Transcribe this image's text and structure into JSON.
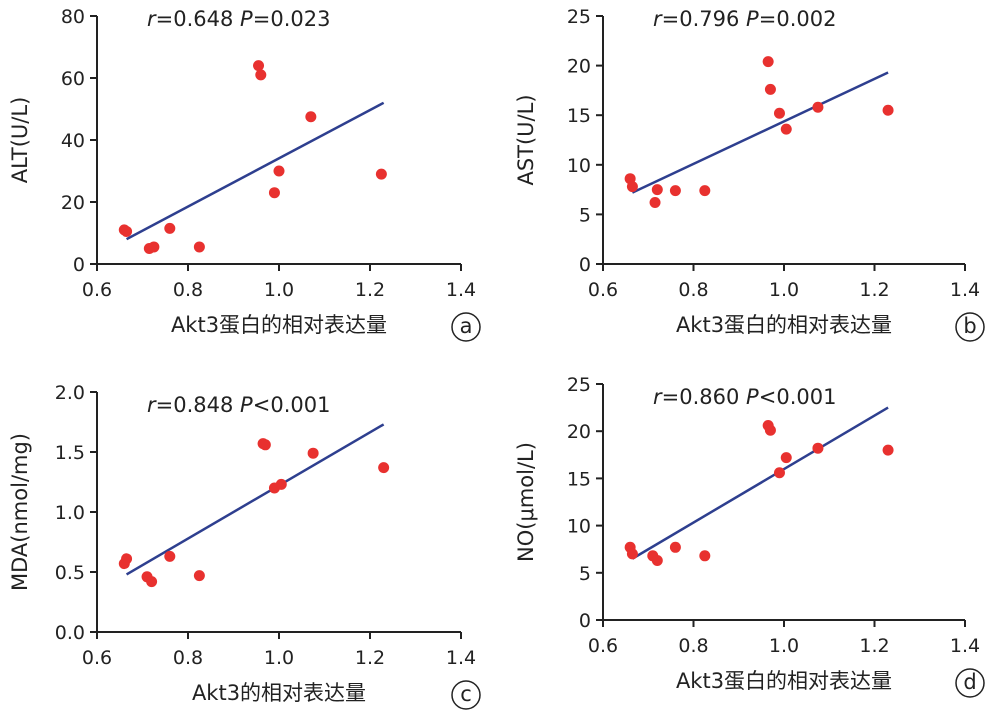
{
  "chart_data": [
    {
      "type": "scatter",
      "panel": "a",
      "annotation": {
        "r": "0.648",
        "p_op": "=",
        "p": "0.023"
      },
      "xlabel": "Akt3蛋白的相对表达量",
      "ylabel": "ALT(U/L)",
      "xlim": [
        0.6,
        1.4
      ],
      "ylim": [
        0,
        80
      ],
      "xticks": [
        "0.6",
        "0.8",
        "1.0",
        "1.2",
        "1.4"
      ],
      "yticks": [
        "0",
        "20",
        "40",
        "60",
        "80"
      ],
      "x": [
        0.66,
        0.665,
        0.715,
        0.725,
        0.76,
        0.825,
        0.955,
        0.96,
        0.99,
        1.0,
        1.07,
        1.225
      ],
      "y": [
        11,
        10.5,
        5,
        5.5,
        11.5,
        5.5,
        64,
        61,
        23,
        30,
        47.5,
        29
      ],
      "fit": {
        "x": [
          0.665,
          1.23
        ],
        "y": [
          8,
          52
        ]
      },
      "point_color": "#e8312f",
      "line_color": "#2e3f8f"
    },
    {
      "type": "scatter",
      "panel": "b",
      "annotation": {
        "r": "0.796",
        "p_op": "=",
        "p": "0.002"
      },
      "xlabel": "Akt3蛋白的相对表达量",
      "ylabel": "AST(U/L)",
      "xlim": [
        0.6,
        1.4
      ],
      "ylim": [
        0,
        25
      ],
      "xticks": [
        "0.6",
        "0.8",
        "1.0",
        "1.2",
        "1.4"
      ],
      "yticks": [
        "0",
        "5",
        "10",
        "15",
        "20",
        "25"
      ],
      "x": [
        0.66,
        0.665,
        0.715,
        0.72,
        0.76,
        0.825,
        0.965,
        0.97,
        0.99,
        1.005,
        1.075,
        1.23
      ],
      "y": [
        8.6,
        7.8,
        6.2,
        7.5,
        7.4,
        7.4,
        20.4,
        17.6,
        15.2,
        13.6,
        15.8,
        15.5
      ],
      "fit": {
        "x": [
          0.665,
          1.23
        ],
        "y": [
          7.2,
          19.3
        ]
      },
      "point_color": "#e8312f",
      "line_color": "#2e3f8f"
    },
    {
      "type": "scatter",
      "panel": "c",
      "annotation": {
        "r": "0.848",
        "p_op": "<",
        "p": "0.001"
      },
      "xlabel": "Akt3的相对表达量",
      "ylabel": "MDA(nmol/mg)",
      "xlim": [
        0.6,
        1.4
      ],
      "ylim": [
        0,
        2.0
      ],
      "xticks": [
        "0.6",
        "0.8",
        "1.0",
        "1.2",
        "1.4"
      ],
      "yticks": [
        "0.0",
        "0.5",
        "1.0",
        "1.5",
        "2.0"
      ],
      "x": [
        0.66,
        0.665,
        0.71,
        0.72,
        0.76,
        0.825,
        0.965,
        0.97,
        0.99,
        1.005,
        1.075,
        1.23
      ],
      "y": [
        0.57,
        0.61,
        0.46,
        0.42,
        0.63,
        0.47,
        1.57,
        1.56,
        1.2,
        1.23,
        1.49,
        1.37
      ],
      "fit": {
        "x": [
          0.665,
          1.23
        ],
        "y": [
          0.48,
          1.73
        ]
      },
      "point_color": "#e8312f",
      "line_color": "#2e3f8f"
    },
    {
      "type": "scatter",
      "panel": "d",
      "annotation": {
        "r": "0.860",
        "p_op": "<",
        "p": "0.001"
      },
      "xlabel": "Akt3蛋白的相对表达量",
      "ylabel": "NO(μmol/L)",
      "xlim": [
        0.6,
        1.4
      ],
      "ylim": [
        0,
        25
      ],
      "xticks": [
        "0.6",
        "0.8",
        "1.0",
        "1.2",
        "1.4"
      ],
      "yticks": [
        "0",
        "5",
        "10",
        "15",
        "20",
        "25"
      ],
      "x": [
        0.66,
        0.665,
        0.71,
        0.72,
        0.76,
        0.825,
        0.965,
        0.97,
        0.99,
        1.005,
        1.075,
        1.23
      ],
      "y": [
        7.7,
        7.0,
        6.8,
        6.3,
        7.7,
        6.8,
        20.6,
        20.1,
        15.6,
        17.2,
        18.2,
        18.0
      ],
      "fit": {
        "x": [
          0.665,
          1.23
        ],
        "y": [
          6.5,
          22.5
        ]
      },
      "point_color": "#e8312f",
      "line_color": "#2e3f8f"
    }
  ]
}
